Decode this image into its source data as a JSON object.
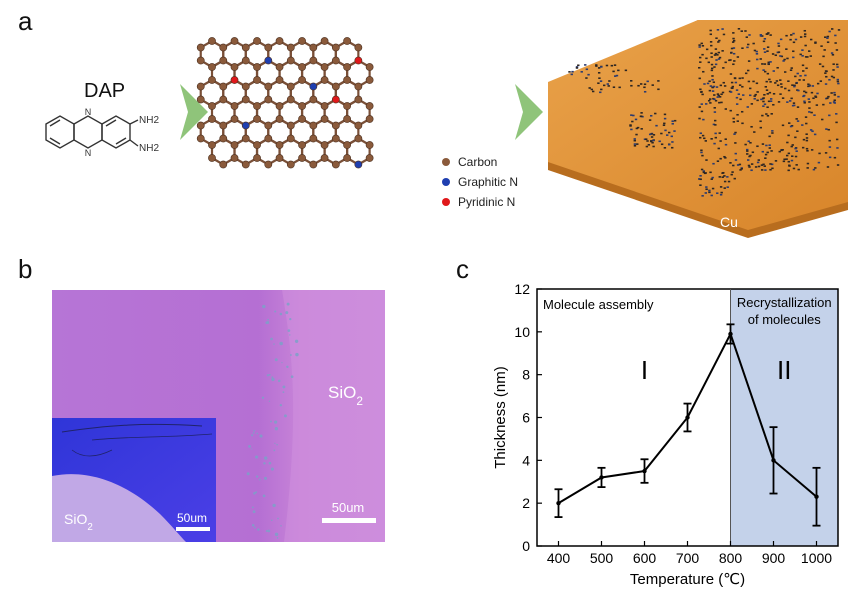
{
  "panel_labels": {
    "a": "a",
    "b": "b",
    "c": "c"
  },
  "panel_a": {
    "precursor_name": "DAP",
    "substituents": [
      "NH2",
      "NH2"
    ],
    "legend": [
      {
        "label": "Carbon",
        "color": "#8a5a3b"
      },
      {
        "label": "Graphitic N",
        "color": "#1f3fb0"
      },
      {
        "label": "Pyridinic N",
        "color": "#e0181b"
      }
    ],
    "substrate_label": "Cu",
    "arrow_color": "#8fc47a",
    "substrate_color": "#e0953a"
  },
  "panel_b": {
    "main_image_label": "SiO2",
    "main_scalebar": "50um",
    "inset_label": "SiO2",
    "inset_scalebar": "50um",
    "main_color": "#c27ad8",
    "inset_color": "#3d3ce0"
  },
  "chart_data": {
    "type": "line",
    "x": [
      400,
      500,
      600,
      700,
      800,
      900,
      1000
    ],
    "y": [
      2.0,
      3.2,
      3.5,
      6.0,
      9.9,
      4.0,
      2.3
    ],
    "error": [
      0.65,
      0.45,
      0.55,
      0.65,
      0.45,
      1.55,
      1.35
    ],
    "xlabel": "Temperature (℃)",
    "ylabel": "Thickness (nm)",
    "xlim": [
      350,
      1050
    ],
    "ylim": [
      0,
      12
    ],
    "xticks": [
      400,
      500,
      600,
      700,
      800,
      900,
      1000
    ],
    "yticks": [
      0,
      2,
      4,
      6,
      8,
      10,
      12
    ],
    "grid": false,
    "regions": [
      {
        "label": "I",
        "title": "Molecule assembly",
        "from": 350,
        "to": 800
      },
      {
        "label": "II",
        "title_lines": [
          "Recrystallization",
          "of molecules"
        ],
        "from": 800,
        "to": 1050,
        "color": "#c4d2ea"
      }
    ]
  }
}
